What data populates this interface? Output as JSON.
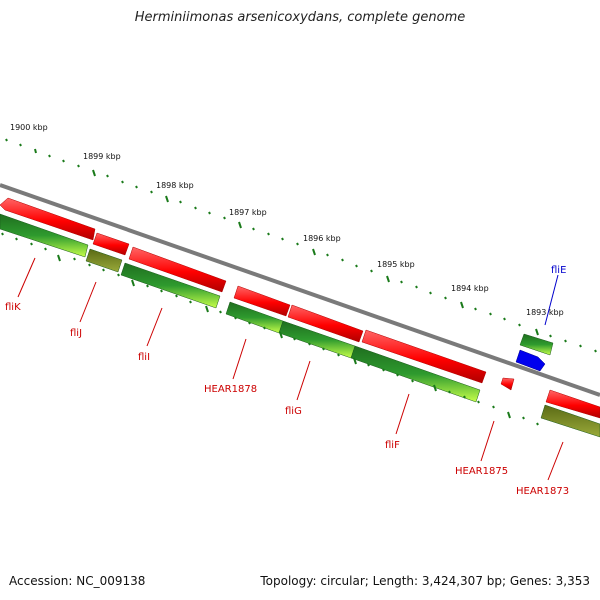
{
  "title": "Herminiimonas arsenicoxydans, complete genome",
  "footer": {
    "accession": "Accession: NC_009138",
    "summary": "Topology: circular; Length: 3,424,307 bp; Genes: 3,353"
  },
  "kbp_labels": [
    "1900 kbp",
    "1899 kbp",
    "1898 kbp",
    "1897 kbp",
    "1896 kbp",
    "1895 kbp",
    "1894 kbp",
    "1893 kbp"
  ],
  "gene_labels": [
    "fliK",
    "fliJ",
    "fliI",
    "HEAR1878",
    "fliG",
    "fliF",
    "HEAR1875",
    "HEAR1873",
    "fliE"
  ],
  "colors": {
    "forward_gene": "#ff0000",
    "reverse_gene_dark": "#2e8b2e",
    "reverse_gene_light": "#b5ff3a",
    "olive_gene": "#7a8a2a",
    "blue_gene": "#0000ee",
    "backbone": "#808080",
    "tick": "#1a7a1a",
    "label_red": "#cc0000",
    "label_blue": "#0000cc"
  }
}
